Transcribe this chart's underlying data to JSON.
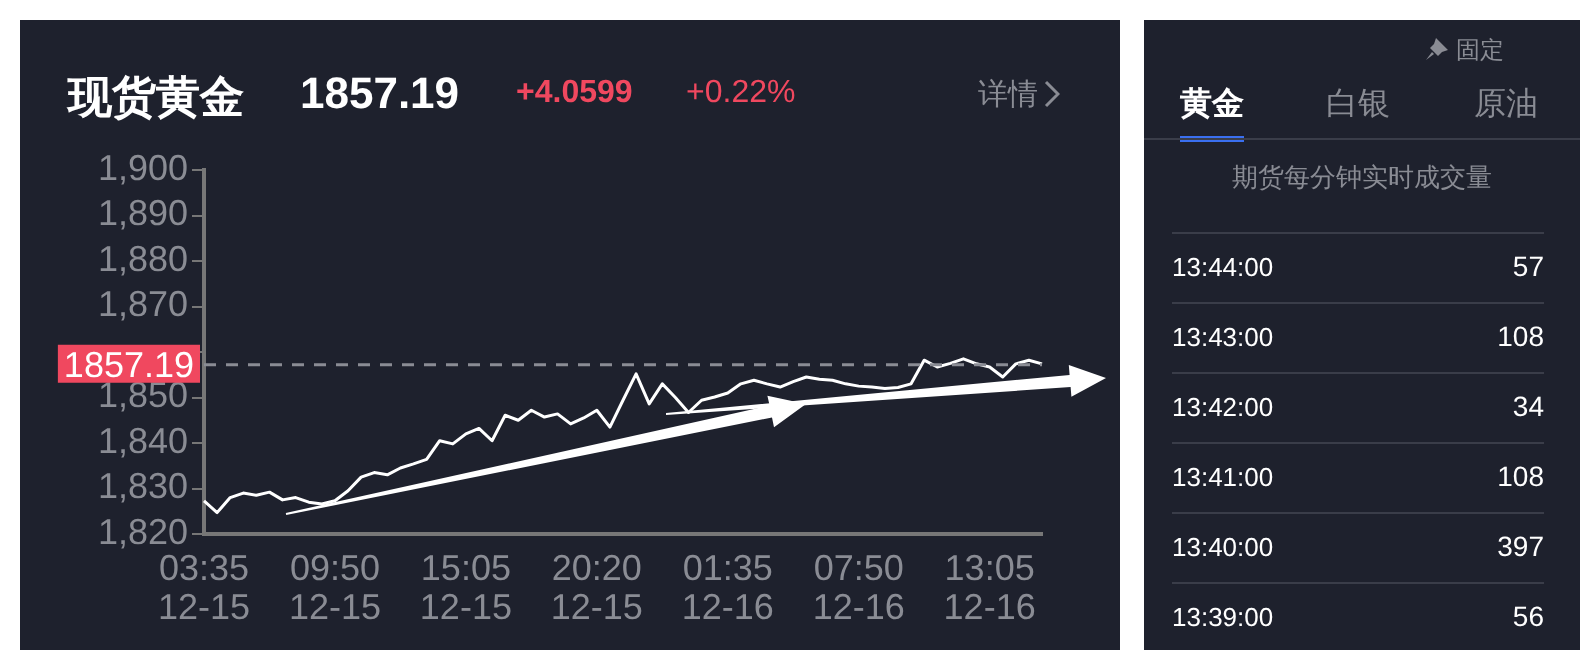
{
  "chart_data": {
    "type": "line",
    "title": "现货黄金",
    "annotations": [
      "1857.19",
      "+4.0599",
      "+0.22%",
      "详情",
      "固定",
      "黄金",
      "白银",
      "原油",
      "期货每分钟实时成交量",
      "13:44:00",
      "57",
      "13:43:00",
      "108",
      "13:42:00",
      "34",
      "13:41:00",
      "108",
      "13:40:00",
      "397",
      "13:39:00",
      "56"
    ],
    "categories": [
      "03:35\n12-15",
      null,
      null,
      null,
      null,
      null,
      null,
      null,
      null,
      null,
      "09:50\n12-15",
      null,
      null,
      null,
      null,
      null,
      null,
      null,
      null,
      null,
      "15:05\n12-15",
      null,
      null,
      null,
      null,
      null,
      null,
      null,
      null,
      null,
      "20:20\n12-15",
      null,
      null,
      null,
      null,
      null,
      null,
      null,
      null,
      null,
      "01:35\n12-16",
      null,
      null,
      null,
      null,
      null,
      null,
      null,
      null,
      null,
      "07:50\n12-16",
      null,
      null,
      null,
      null,
      null,
      null,
      null,
      null,
      null,
      "13:05\n12-16",
      null,
      null,
      null,
      null
    ],
    "values": [
      1827.3,
      1824.7,
      1828,
      1829,
      1828.5,
      1829.2,
      1827.5,
      1828,
      1827,
      1826.6,
      1827.3,
      1829.5,
      1832.5,
      1833.5,
      1833,
      1834.5,
      1835.4,
      1836.4,
      1840.5,
      1839.8,
      1842,
      1843.2,
      1840.5,
      1846.1,
      1845,
      1847.2,
      1845.7,
      1846.4,
      1844.2,
      1845.5,
      1847.2,
      1843.5,
      1849.4,
      1855.2,
      1848.6,
      1853,
      1850,
      1846.7,
      1849.4,
      1850.1,
      1851,
      1853,
      1853.8,
      1853,
      1852.3,
      1853.5,
      1854.5,
      1854,
      1853.8,
      1853,
      1852.5,
      1852.3,
      1852,
      1852.2,
      1853,
      1858.2,
      1856.7,
      1857.5,
      1858.5,
      1857.4,
      1856.7,
      1854.5,
      1857.4,
      1858.2,
      1857.4
    ],
    "color": "#ffffff",
    "ylim": [
      1820,
      1900
    ],
    "yticks": [
      {
        "value": 1820,
        "label": "1,820"
      },
      {
        "value": 1830,
        "label": "1,830"
      },
      {
        "value": 1840,
        "label": "1,840"
      },
      {
        "value": 1850,
        "label": "1,850"
      },
      {
        "value": 1860,
        "label": null
      },
      {
        "value": 1870,
        "label": "1,870"
      },
      {
        "value": 1880,
        "label": "1,880"
      },
      {
        "value": 1890,
        "label": "1,890"
      },
      {
        "value": 1900,
        "label": "1,900"
      }
    ],
    "ref_lines": [
      {
        "axis": "y",
        "value": 1857.19,
        "label": "1857.19",
        "color": "#8a8c94",
        "line_style": "dashed"
      }
    ],
    "grid": false,
    "legend": false
  }
}
